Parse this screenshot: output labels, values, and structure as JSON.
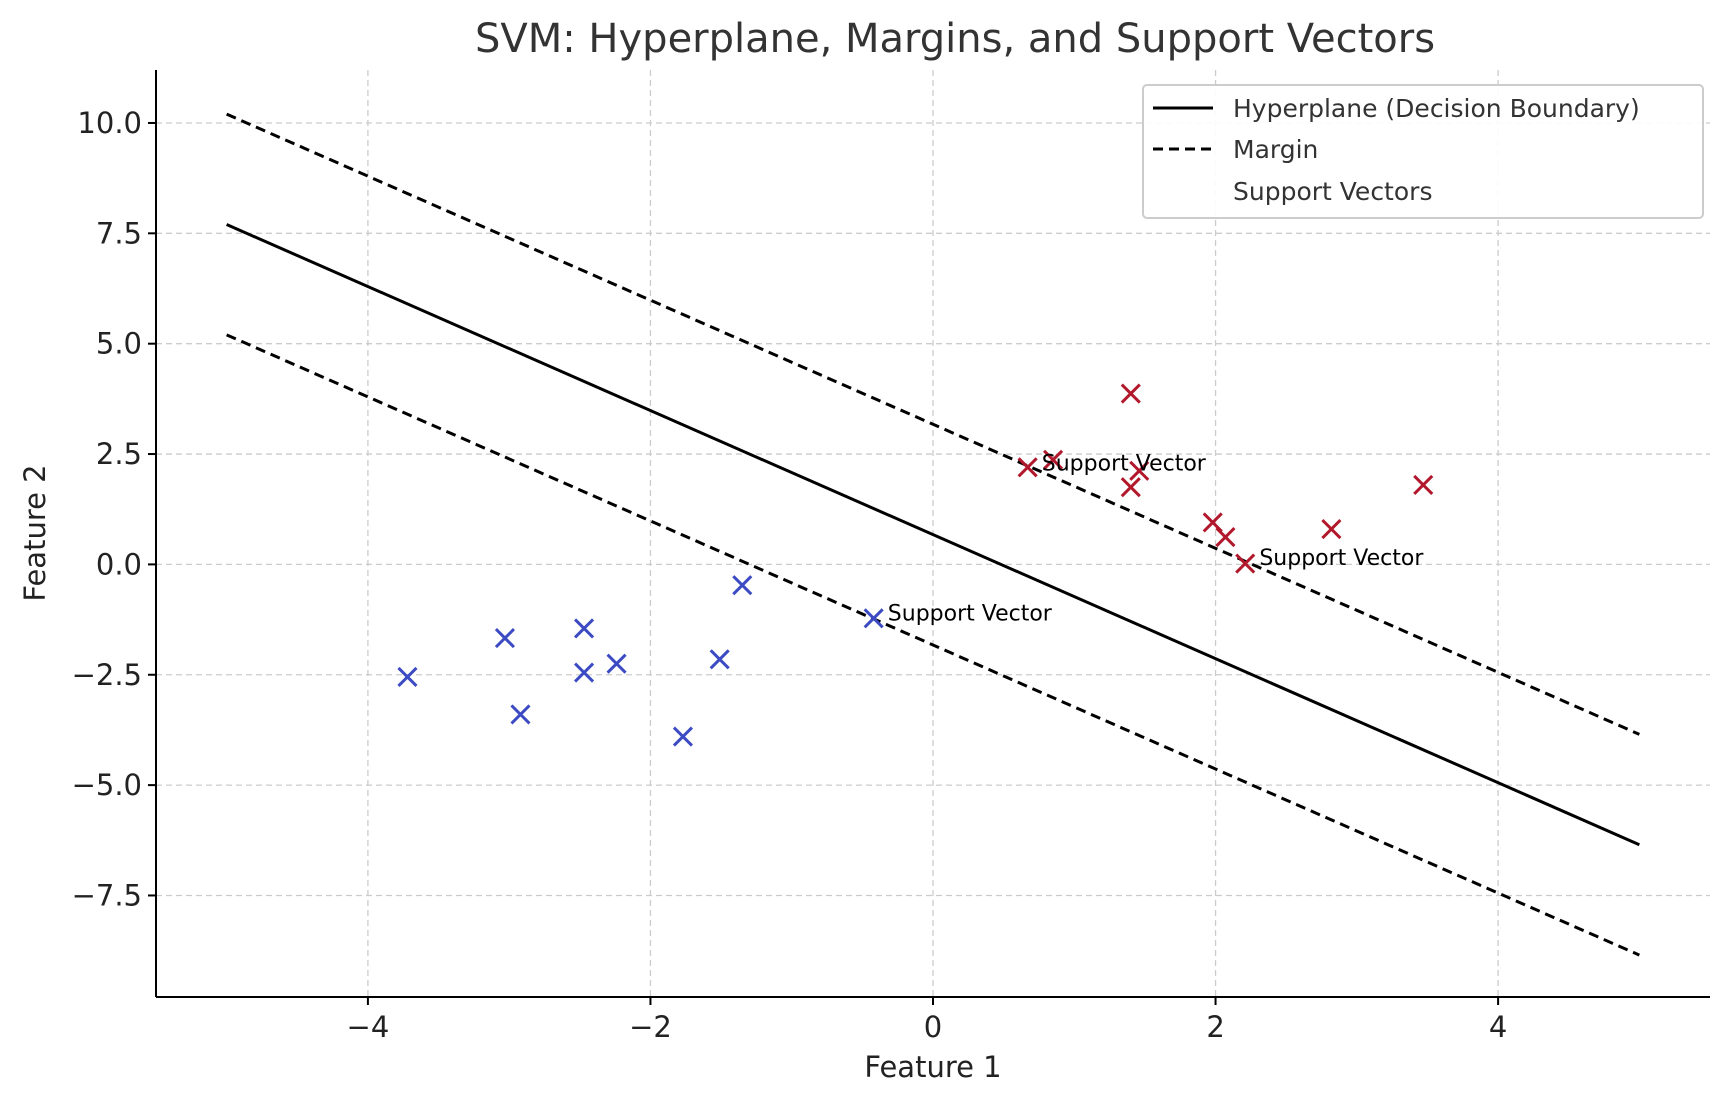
{
  "chart_data": {
    "type": "scatter",
    "title": "SVM: Hyperplane, Margins, and Support Vectors",
    "xlabel": "Feature 1",
    "ylabel": "Feature 2",
    "xlim": [
      -5.5,
      5.5
    ],
    "ylim": [
      -9.8,
      11.2
    ],
    "grid": true,
    "x_ticks": [
      -4,
      -2,
      0,
      2,
      4
    ],
    "x_tick_labels": [
      "−4",
      "−2",
      "0",
      "2",
      "4"
    ],
    "y_ticks": [
      -7.5,
      -5.0,
      -2.5,
      0.0,
      2.5,
      5.0,
      7.5,
      10.0
    ],
    "y_tick_labels": [
      "−7.5",
      "−5.0",
      "−2.5",
      "0.0",
      "2.5",
      "5.0",
      "7.5",
      "10.0"
    ],
    "lines": [
      {
        "name": "Hyperplane (Decision Boundary)",
        "style": "solid",
        "color": "#000000",
        "x": [
          -5,
          5
        ],
        "y": [
          7.7,
          -6.35
        ]
      },
      {
        "name": "Margin",
        "style": "dashed",
        "color": "#000000",
        "x": [
          -5,
          5
        ],
        "y": [
          10.2,
          -3.85
        ]
      },
      {
        "name": "",
        "style": "dashed",
        "color": "#000000",
        "x": [
          -5,
          5
        ],
        "y": [
          5.2,
          -8.85
        ]
      }
    ],
    "series": [
      {
        "class": "negative",
        "color": "#3c4bc3",
        "marker": "x",
        "points": [
          [
            -3.72,
            -2.55
          ],
          [
            -3.03,
            -1.67
          ],
          [
            -2.92,
            -3.4
          ],
          [
            -2.47,
            -1.45
          ],
          [
            -2.47,
            -2.45
          ],
          [
            -2.24,
            -2.25
          ],
          [
            -1.77,
            -3.9
          ],
          [
            -1.51,
            -2.15
          ],
          [
            -1.35,
            -0.47
          ],
          [
            -0.42,
            -1.22
          ]
        ]
      },
      {
        "class": "positive",
        "color": "#b2182b",
        "marker": "x",
        "points": [
          [
            0.67,
            2.2
          ],
          [
            0.85,
            2.37
          ],
          [
            1.4,
            3.87
          ],
          [
            1.4,
            1.75
          ],
          [
            1.46,
            2.12
          ],
          [
            1.98,
            0.95
          ],
          [
            2.07,
            0.62
          ],
          [
            2.21,
            0.02
          ],
          [
            2.82,
            0.8
          ],
          [
            3.47,
            1.8
          ]
        ]
      }
    ],
    "annotations": [
      {
        "text": "Support Vector",
        "x": 0.77,
        "y": 2.17
      },
      {
        "text": "Support Vector",
        "x": 2.31,
        "y": 0.03
      },
      {
        "text": "Support Vector",
        "x": -0.32,
        "y": -1.22
      }
    ],
    "legend": {
      "placement": "upper right",
      "entries": [
        {
          "label": "Hyperplane (Decision Boundary)",
          "style": "solid"
        },
        {
          "label": "Margin",
          "style": "dashed"
        },
        {
          "label": "Support Vectors",
          "style": "none"
        }
      ]
    }
  }
}
